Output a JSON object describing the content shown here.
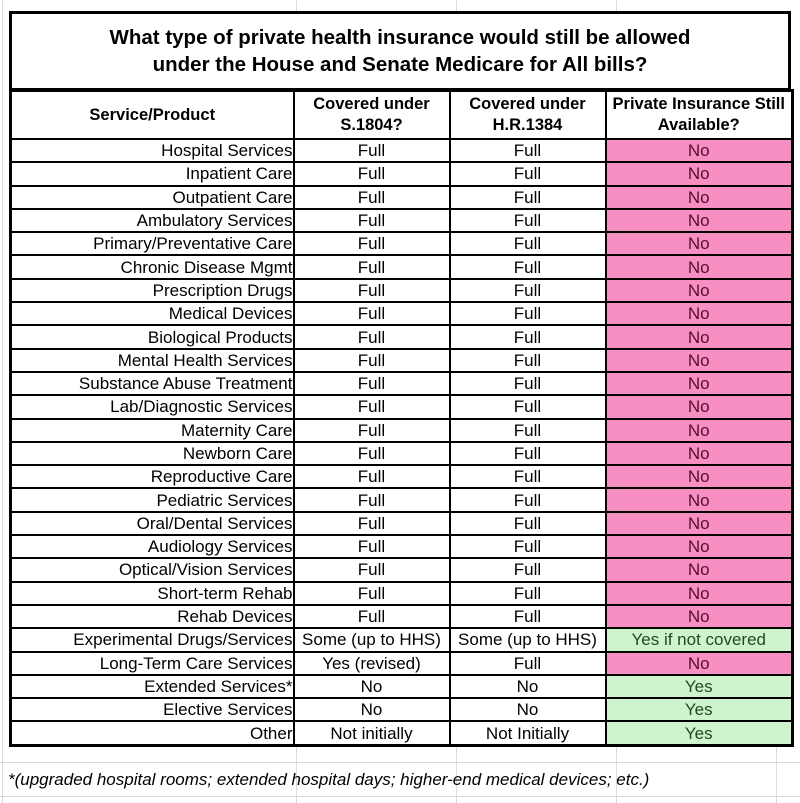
{
  "title": {
    "line1": "What type of private health insurance would still be allowed",
    "line2": "under the House and Senate Medicare for All bills?"
  },
  "columns": [
    "Service/Product",
    "Covered under S.1804?",
    "Covered under H.R.1384",
    "Private Insurance Still Available?"
  ],
  "rows": [
    {
      "service": "Hospital Services",
      "s1804": "Full",
      "hr1384": "Full",
      "available": "No",
      "status": "no",
      "small": false
    },
    {
      "service": "Inpatient Care",
      "s1804": "Full",
      "hr1384": "Full",
      "available": "No",
      "status": "no",
      "small": false
    },
    {
      "service": "Outpatient Care",
      "s1804": "Full",
      "hr1384": "Full",
      "available": "No",
      "status": "no",
      "small": false
    },
    {
      "service": "Ambulatory Services",
      "s1804": "Full",
      "hr1384": "Full",
      "available": "No",
      "status": "no",
      "small": false
    },
    {
      "service": "Primary/Preventative Care",
      "s1804": "Full",
      "hr1384": "Full",
      "available": "No",
      "status": "no",
      "small": false
    },
    {
      "service": "Chronic Disease Mgmt",
      "s1804": "Full",
      "hr1384": "Full",
      "available": "No",
      "status": "no",
      "small": false
    },
    {
      "service": "Prescription Drugs",
      "s1804": "Full",
      "hr1384": "Full",
      "available": "No",
      "status": "no",
      "small": false
    },
    {
      "service": "Medical Devices",
      "s1804": "Full",
      "hr1384": "Full",
      "available": "No",
      "status": "no",
      "small": false
    },
    {
      "service": "Biological Products",
      "s1804": "Full",
      "hr1384": "Full",
      "available": "No",
      "status": "no",
      "small": false
    },
    {
      "service": "Mental Health Services",
      "s1804": "Full",
      "hr1384": "Full",
      "available": "No",
      "status": "no",
      "small": false
    },
    {
      "service": "Substance Abuse Treatment",
      "s1804": "Full",
      "hr1384": "Full",
      "available": "No",
      "status": "no",
      "small": false
    },
    {
      "service": "Lab/Diagnostic Services",
      "s1804": "Full",
      "hr1384": "Full",
      "available": "No",
      "status": "no",
      "small": false
    },
    {
      "service": "Maternity Care",
      "s1804": "Full",
      "hr1384": "Full",
      "available": "No",
      "status": "no",
      "small": false
    },
    {
      "service": "Newborn Care",
      "s1804": "Full",
      "hr1384": "Full",
      "available": "No",
      "status": "no",
      "small": false
    },
    {
      "service": "Reproductive Care",
      "s1804": "Full",
      "hr1384": "Full",
      "available": "No",
      "status": "no",
      "small": false
    },
    {
      "service": "Pediatric Services",
      "s1804": "Full",
      "hr1384": "Full",
      "available": "No",
      "status": "no",
      "small": false
    },
    {
      "service": "Oral/Dental Services",
      "s1804": "Full",
      "hr1384": "Full",
      "available": "No",
      "status": "no",
      "small": false
    },
    {
      "service": "Audiology Services",
      "s1804": "Full",
      "hr1384": "Full",
      "available": "No",
      "status": "no",
      "small": false
    },
    {
      "service": "Optical/Vision Services",
      "s1804": "Full",
      "hr1384": "Full",
      "available": "No",
      "status": "no",
      "small": false
    },
    {
      "service": "Short-term Rehab",
      "s1804": "Full",
      "hr1384": "Full",
      "available": "No",
      "status": "no",
      "small": false
    },
    {
      "service": "Rehab Devices",
      "s1804": "Full",
      "hr1384": "Full",
      "available": "No",
      "status": "no",
      "small": false
    },
    {
      "service": "Experimental Drugs/Services",
      "s1804": "Some (up to HHS)",
      "hr1384": "Some (up to HHS)",
      "available": "Yes if not covered",
      "status": "yes",
      "small": true
    },
    {
      "service": "Long-Term Care Services",
      "s1804": "Yes (revised)",
      "hr1384": "Full",
      "available": "No",
      "status": "no",
      "small": false
    },
    {
      "service": "Extended Services*",
      "s1804": "No",
      "hr1384": "No",
      "available": "Yes",
      "status": "yes",
      "small": false
    },
    {
      "service": "Elective Services",
      "s1804": "No",
      "hr1384": "No",
      "available": "Yes",
      "status": "yes",
      "small": false
    },
    {
      "service": "Other",
      "s1804": "Not initially",
      "hr1384": "Not Initially",
      "available": "Yes",
      "status": "yes",
      "small": false
    }
  ],
  "footnote": "*(upgraded hospital rooms; extended hospital days; higher-end medical devices; etc.)",
  "colors": {
    "pink": "#f88fc2",
    "green": "#cff3cd",
    "no_text": "#570d31",
    "yes_text": "#1c4e1c",
    "border": "#000000",
    "faint_grid": "#dcdcdc"
  }
}
